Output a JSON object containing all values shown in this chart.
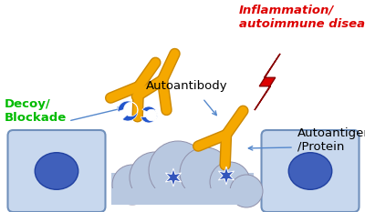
{
  "bg_color": "#ffffff",
  "labels": {
    "decoy": "Decoy/\nBlockade",
    "autoantibody": "Autoantibody",
    "inflammation": "Inflammation/\nautoimmune disease",
    "autoantigen": "Autoantigen\n/Protein"
  },
  "label_colors": {
    "decoy": "#00bb00",
    "autoantibody": "#000000",
    "inflammation": "#dd0000",
    "autoantigen": "#000000"
  },
  "cell_color": "#c8d8ee",
  "cell_border": "#7090bb",
  "nucleus_color": "#4060bb",
  "cloud_color": "#b8c8e0",
  "cloud_border": "#9090aa",
  "antibody_color": "#f5a800",
  "antibody_border": "#cc8800",
  "decoy_color": "#2255cc",
  "lightning_color": "#dd0000",
  "lightning_border": "#880000",
  "star_color": "#3355bb",
  "star_border": "#ffffff",
  "arrow_color": "#5588cc"
}
